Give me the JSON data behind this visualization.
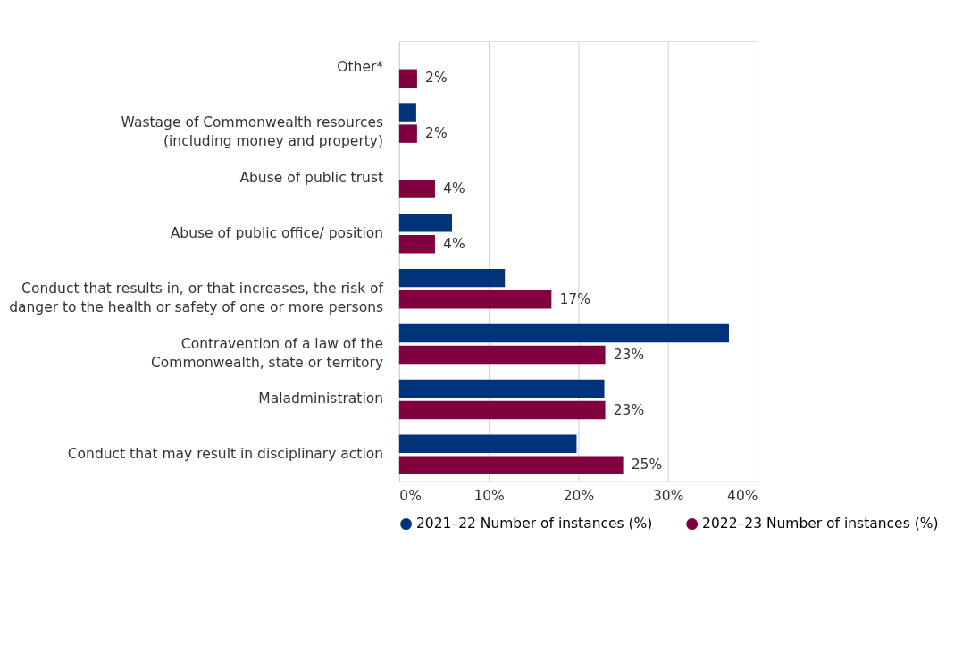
{
  "chart_data": {
    "type": "bar",
    "orientation": "horizontal",
    "categories": [
      "Other*",
      "Wastage of Commonwealth resources\n(including money and property)",
      "Abuse of public trust",
      "Abuse of public office/ position",
      "Conduct that results in, or that increases, the risk of\ndanger to the health or safety of one or more persons",
      "Contravention of a law of the\nCommonwealth, state or territory",
      "Maladministration",
      "Conduct that may result in disciplinary action"
    ],
    "series": [
      {
        "name": "2021–22 Number of instances (%)",
        "color": "#00337a",
        "values": [
          null,
          1.9,
          null,
          5.9,
          11.8,
          36.8,
          22.9,
          19.8
        ]
      },
      {
        "name": "2022–23 Number of instances (%)",
        "color": "#800040",
        "values": [
          2,
          2,
          4,
          4,
          17,
          23,
          23,
          25
        ],
        "value_labels": [
          "2%",
          "2%",
          "4%",
          "4%",
          "17%",
          "23%",
          "23%",
          "25%"
        ]
      }
    ],
    "xlim": [
      0,
      40
    ],
    "xticks": [
      {
        "value": 0,
        "label": "0%"
      },
      {
        "value": 10,
        "label": "10%"
      },
      {
        "value": 20,
        "label": "20%"
      },
      {
        "value": 30,
        "label": "30%"
      },
      {
        "value": 40,
        "label": "40%"
      }
    ],
    "grid": "x",
    "legend": "bottom"
  }
}
